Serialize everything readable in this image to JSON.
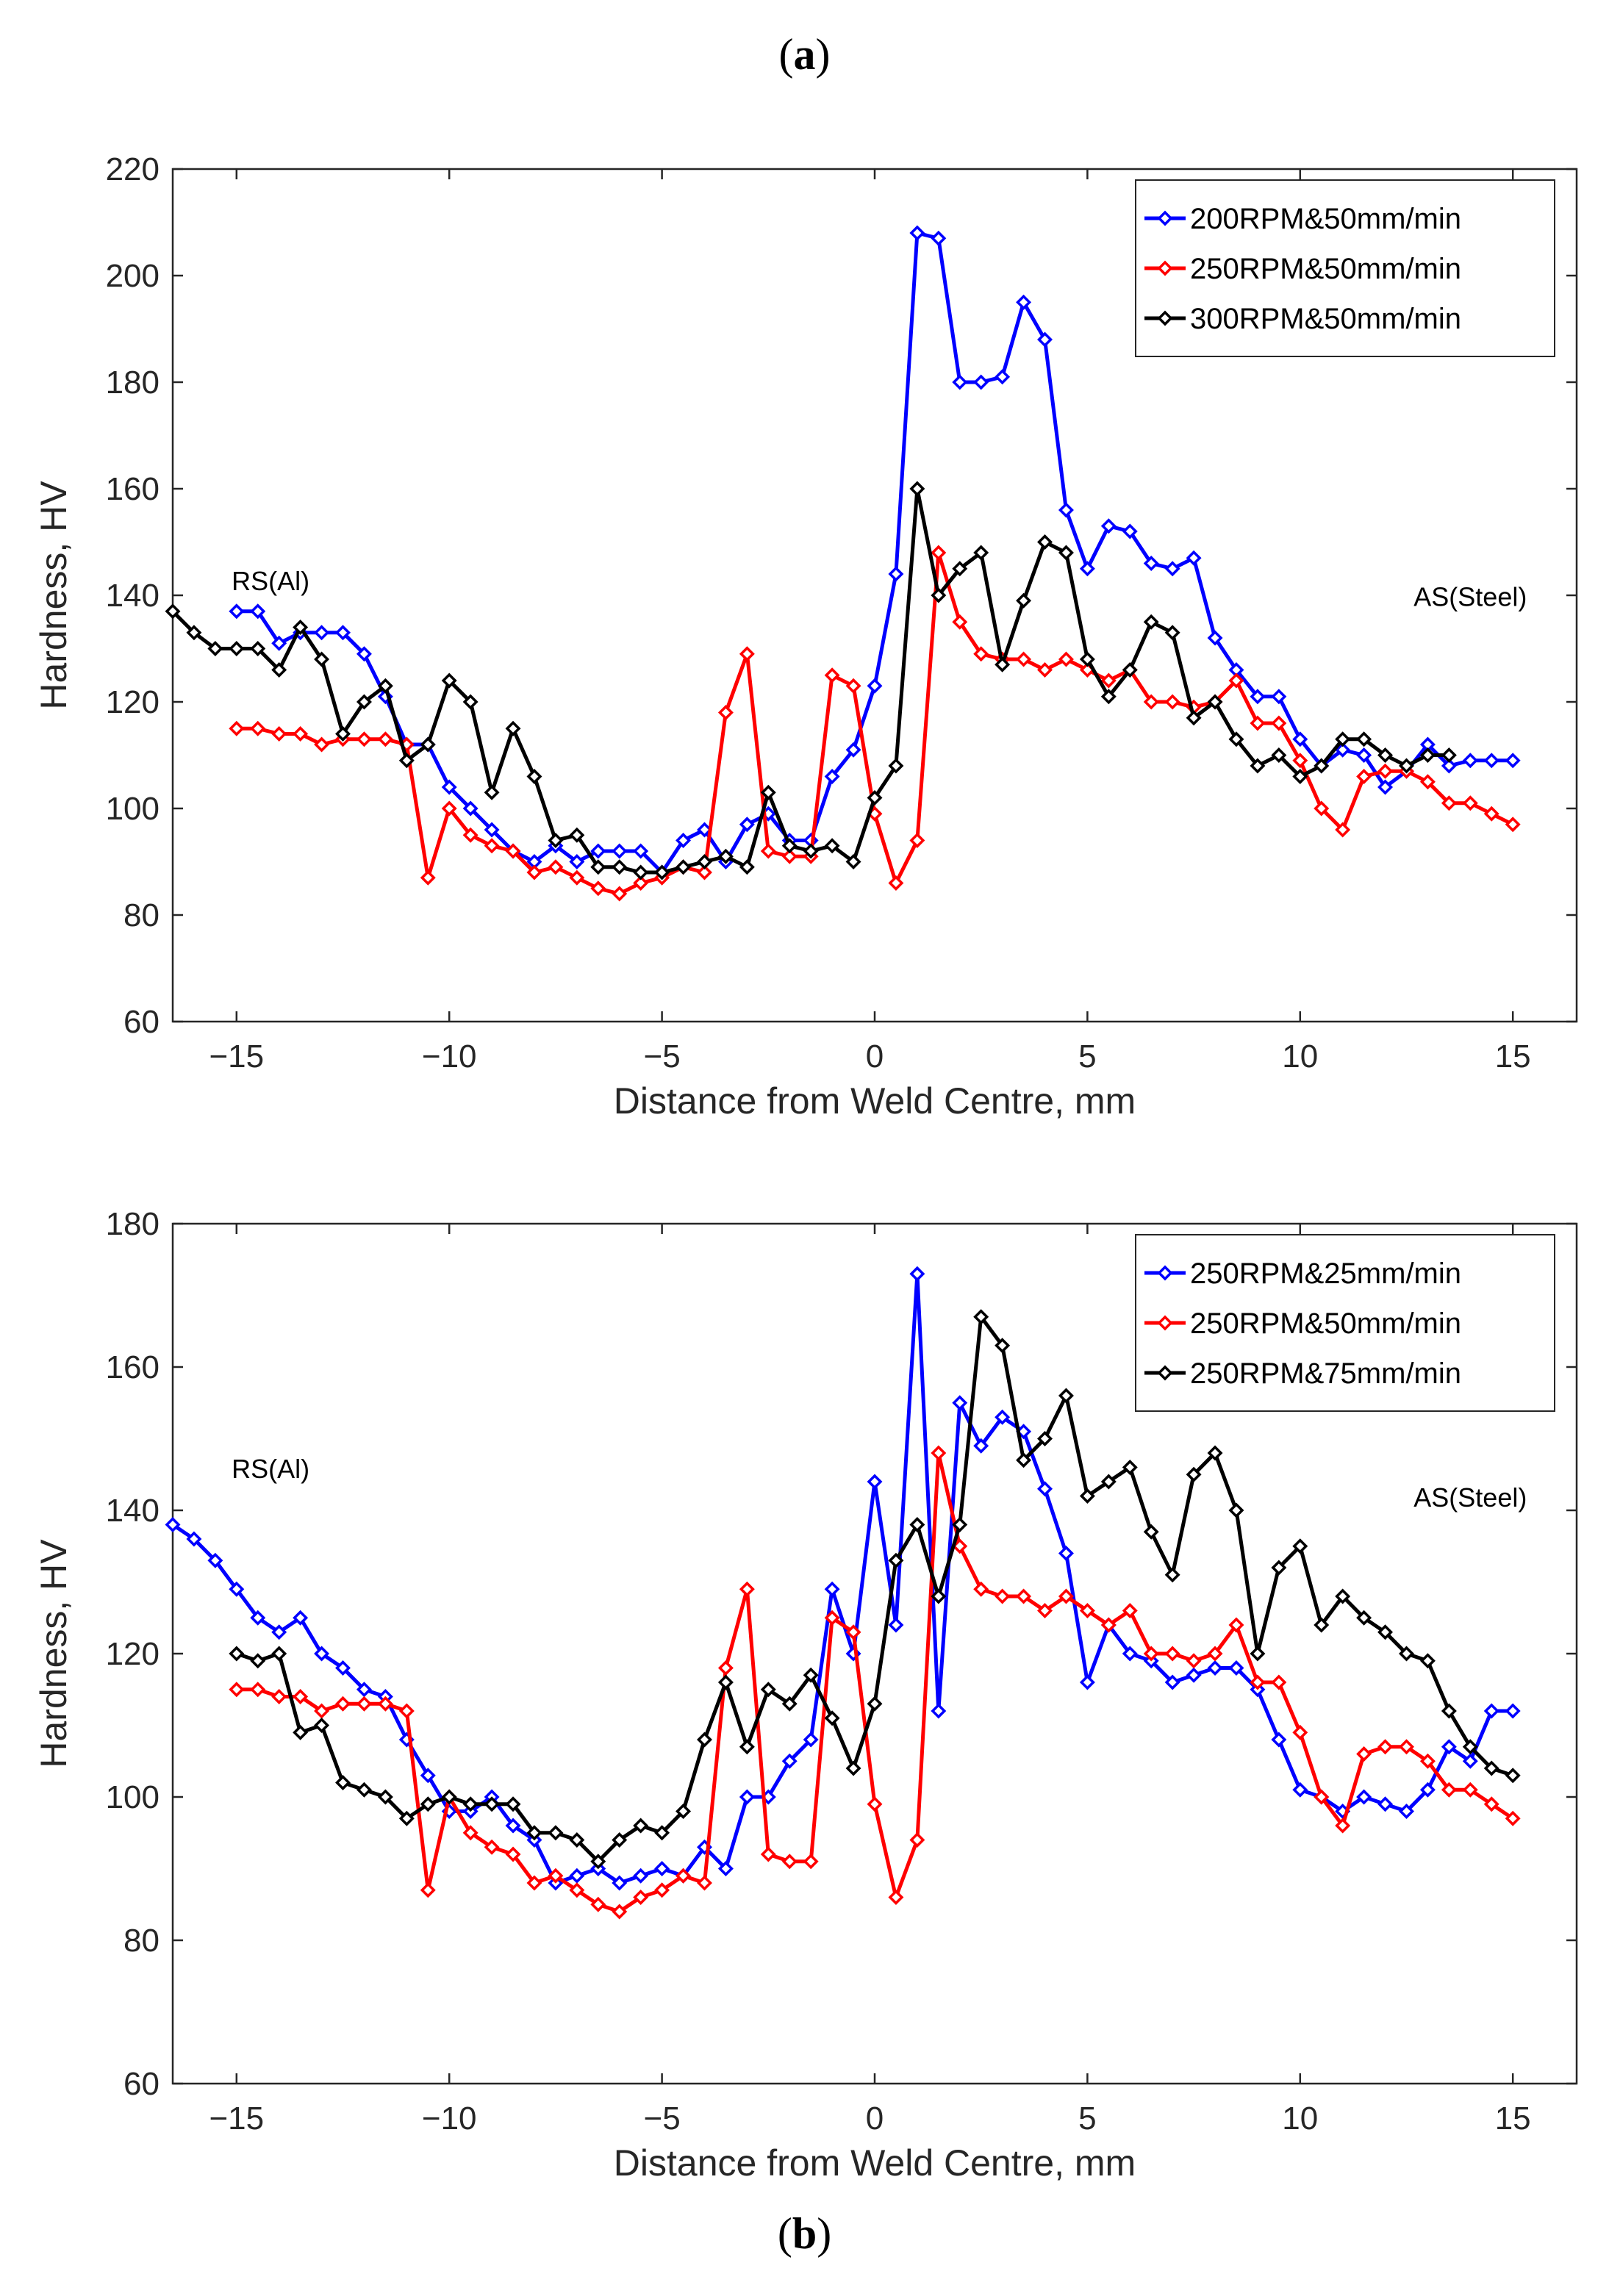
{
  "figure": {
    "label_a_open": "(",
    "label_a_letter": "a",
    "label_a_close": ")",
    "label_b_open": "(",
    "label_b_letter": "b",
    "label_b_close": ")"
  },
  "chart_data": [
    {
      "type": "line",
      "panel": "a",
      "title": "",
      "xlabel": "Distance from Weld Centre, mm",
      "ylabel": "Hardness, HV",
      "xlim": [
        -16.5,
        16.5
      ],
      "ylim": [
        60,
        220
      ],
      "xticks": [
        -15,
        -10,
        -5,
        0,
        5,
        10,
        15
      ],
      "xtick_labels": [
        "−15",
        "−10",
        "−5",
        "0",
        "5",
        "10",
        "15"
      ],
      "yticks": [
        60,
        80,
        100,
        120,
        140,
        160,
        180,
        200,
        220
      ],
      "ytick_labels": [
        "60",
        "80",
        "100",
        "120",
        "140",
        "160",
        "180",
        "200",
        "220"
      ],
      "legend_position": "top-right",
      "annotations": [
        {
          "text": "RS(Al)",
          "x": -14.2,
          "y": 141
        },
        {
          "text": "AS(Steel)",
          "x": 14.0,
          "y": 138
        }
      ],
      "series": [
        {
          "name": "200RPM&50mm/min",
          "color": "#0000ff",
          "x": [
            -15,
            -14.5,
            -14,
            -13.5,
            -13,
            -12.5,
            -12,
            -11.5,
            -11,
            -10.5,
            -10,
            -9.5,
            -9,
            -8.5,
            -8,
            -7.5,
            -7,
            -6.5,
            -6,
            -5.5,
            -5,
            -4.5,
            -4,
            -3.5,
            -3,
            -2.5,
            -2,
            -1.5,
            -1,
            -0.5,
            0,
            0.5,
            1,
            1.5,
            2,
            2.5,
            3,
            3.5,
            4,
            4.5,
            5,
            5.5,
            6,
            6.5,
            7,
            7.5,
            8,
            8.5,
            9,
            9.5,
            10,
            10.5,
            11,
            11.5,
            12,
            12.5,
            13,
            13.5,
            14,
            14.5,
            15
          ],
          "values": [
            137,
            137,
            131,
            133,
            133,
            133,
            129,
            121,
            112,
            112,
            104,
            100,
            96,
            92,
            90,
            93,
            90,
            92,
            92,
            92,
            88,
            94,
            96,
            90,
            97,
            99,
            94,
            94,
            106,
            111,
            123,
            144,
            208,
            207,
            180,
            180,
            181,
            195,
            188,
            156,
            145,
            153,
            152,
            146,
            145,
            147,
            132,
            126,
            121,
            121,
            113,
            108,
            111,
            110,
            104,
            107,
            112,
            108,
            109,
            109,
            109
          ]
        },
        {
          "name": "250RPM&50mm/min",
          "color": "#ff0000",
          "x": [
            -15,
            -14.5,
            -14,
            -13.5,
            -13,
            -12.5,
            -12,
            -11.5,
            -11,
            -10.5,
            -10,
            -9.5,
            -9,
            -8.5,
            -8,
            -7.5,
            -7,
            -6.5,
            -6,
            -5.5,
            -5,
            -4.5,
            -4,
            -3.5,
            -3,
            -2.5,
            -2,
            -1.5,
            -1,
            -0.5,
            0,
            0.5,
            1,
            1.5,
            2,
            2.5,
            3,
            3.5,
            4,
            4.5,
            5,
            5.5,
            6,
            6.5,
            7,
            7.5,
            8,
            8.5,
            9,
            9.5,
            10,
            10.5,
            11,
            11.5,
            12,
            12.5,
            13,
            13.5,
            14,
            14.5,
            15
          ],
          "values": [
            115,
            115,
            114,
            114,
            112,
            113,
            113,
            113,
            112,
            87,
            100,
            95,
            93,
            92,
            88,
            89,
            87,
            85,
            84,
            86,
            87,
            89,
            88,
            118,
            129,
            92,
            91,
            91,
            125,
            123,
            99,
            86,
            94,
            148,
            135,
            129,
            128,
            128,
            126,
            128,
            126,
            124,
            126,
            120,
            120,
            119,
            120,
            124,
            116,
            116,
            109,
            100,
            96,
            106,
            107,
            107,
            105,
            101,
            101,
            99,
            97
          ]
        },
        {
          "name": "300RPM&50mm/min",
          "color": "#000000",
          "x": [
            -16.5,
            -16,
            -15.5,
            -15,
            -14.5,
            -14,
            -13.5,
            -13,
            -12.5,
            -12,
            -11.5,
            -11,
            -10.5,
            -10,
            -9.5,
            -9,
            -8.5,
            -8,
            -7.5,
            -7,
            -6.5,
            -6,
            -5.5,
            -5,
            -4.5,
            -4,
            -3.5,
            -3,
            -2.5,
            -2,
            -1.5,
            -1,
            -0.5,
            0,
            0.5,
            1,
            1.5,
            2,
            2.5,
            3,
            3.5,
            4,
            4.5,
            5,
            5.5,
            6,
            6.5,
            7,
            7.5,
            8,
            8.5,
            9,
            9.5,
            10,
            10.5,
            11,
            11.5,
            12,
            12.5,
            13,
            13.5
          ],
          "values": [
            137,
            133,
            130,
            130,
            130,
            126,
            134,
            128,
            114,
            120,
            123,
            109,
            112,
            124,
            120,
            103,
            115,
            106,
            94,
            95,
            89,
            89,
            88,
            88,
            89,
            90,
            91,
            89,
            103,
            93,
            92,
            93,
            90,
            102,
            108,
            160,
            140,
            145,
            148,
            127,
            139,
            150,
            148,
            128,
            121,
            126,
            135,
            133,
            117,
            120,
            113,
            108,
            110,
            106,
            108,
            113,
            113,
            110,
            108,
            110,
            110
          ]
        }
      ]
    },
    {
      "type": "line",
      "panel": "b",
      "title": "",
      "xlabel": "Distance from Weld Centre, mm",
      "ylabel": "Hardness, HV",
      "xlim": [
        -16.5,
        16.5
      ],
      "ylim": [
        60,
        180
      ],
      "xticks": [
        -15,
        -10,
        -5,
        0,
        5,
        10,
        15
      ],
      "xtick_labels": [
        "−15",
        "−10",
        "−5",
        "0",
        "5",
        "10",
        "15"
      ],
      "yticks": [
        60,
        80,
        100,
        120,
        140,
        160,
        180
      ],
      "ytick_labels": [
        "60",
        "80",
        "100",
        "120",
        "140",
        "160",
        "180"
      ],
      "legend_position": "top-right",
      "annotations": [
        {
          "text": "RS(Al)",
          "x": -14.2,
          "y": 144.5
        },
        {
          "text": "AS(Steel)",
          "x": 14.0,
          "y": 140.5
        }
      ],
      "series": [
        {
          "name": "250RPM&25mm/min",
          "color": "#0000ff",
          "x": [
            -16.5,
            -16,
            -15.5,
            -15,
            -14.5,
            -14,
            -13.5,
            -13,
            -12.5,
            -12,
            -11.5,
            -11,
            -10.5,
            -10,
            -9.5,
            -9,
            -8.5,
            -8,
            -7.5,
            -7,
            -6.5,
            -6,
            -5.5,
            -5,
            -4.5,
            -4,
            -3.5,
            -3,
            -2.5,
            -2,
            -1.5,
            -1,
            -0.5,
            0,
            0.5,
            1,
            1.5,
            2,
            2.5,
            3,
            3.5,
            4,
            4.5,
            5,
            5.5,
            6,
            6.5,
            7,
            7.5,
            8,
            8.5,
            9,
            9.5,
            10,
            10.5,
            11,
            11.5,
            12,
            12.5,
            13,
            13.5,
            14,
            14.5,
            15
          ],
          "values": [
            138,
            136,
            133,
            129,
            125,
            123,
            125,
            120,
            118,
            115,
            114,
            108,
            103,
            98,
            98,
            100,
            96,
            94,
            88,
            89,
            90,
            88,
            89,
            90,
            89,
            93,
            90,
            100,
            100,
            105,
            108,
            129,
            120,
            144,
            124,
            173,
            112,
            155,
            149,
            153,
            151,
            143,
            134,
            116,
            124,
            120,
            119,
            116,
            117,
            118,
            118,
            115,
            108,
            101,
            100,
            98,
            100,
            99,
            98,
            101,
            107,
            105,
            112,
            112
          ]
        },
        {
          "name": "250RPM&50mm/min",
          "color": "#ff0000",
          "x": [
            -15,
            -14.5,
            -14,
            -13.5,
            -13,
            -12.5,
            -12,
            -11.5,
            -11,
            -10.5,
            -10,
            -9.5,
            -9,
            -8.5,
            -8,
            -7.5,
            -7,
            -6.5,
            -6,
            -5.5,
            -5,
            -4.5,
            -4,
            -3.5,
            -3,
            -2.5,
            -2,
            -1.5,
            -1,
            -0.5,
            0,
            0.5,
            1,
            1.5,
            2,
            2.5,
            3,
            3.5,
            4,
            4.5,
            5,
            5.5,
            6,
            6.5,
            7,
            7.5,
            8,
            8.5,
            9,
            9.5,
            10,
            10.5,
            11,
            11.5,
            12,
            12.5,
            13,
            13.5,
            14,
            14.5,
            15
          ],
          "values": [
            115,
            115,
            114,
            114,
            112,
            113,
            113,
            113,
            112,
            87,
            100,
            95,
            93,
            92,
            88,
            89,
            87,
            85,
            84,
            86,
            87,
            89,
            88,
            118,
            129,
            92,
            91,
            91,
            125,
            123,
            99,
            86,
            94,
            148,
            135,
            129,
            128,
            128,
            126,
            128,
            126,
            124,
            126,
            120,
            120,
            119,
            120,
            124,
            116,
            116,
            109,
            100,
            96,
            106,
            107,
            107,
            105,
            101,
            101,
            99,
            97
          ]
        },
        {
          "name": "250RPM&75mm/min",
          "color": "#000000",
          "x": [
            -15,
            -14.5,
            -14,
            -13.5,
            -13,
            -12.5,
            -12,
            -11.5,
            -11,
            -10.5,
            -10,
            -9.5,
            -9,
            -8.5,
            -8,
            -7.5,
            -7,
            -6.5,
            -6,
            -5.5,
            -5,
            -4.5,
            -4,
            -3.5,
            -3,
            -2.5,
            -2,
            -1.5,
            -1,
            -0.5,
            0,
            0.5,
            1,
            1.5,
            2,
            2.5,
            3,
            3.5,
            4,
            4.5,
            5,
            5.5,
            6,
            6.5,
            7,
            7.5,
            8,
            8.5,
            9,
            9.5,
            10,
            10.5,
            11,
            11.5,
            12,
            12.5,
            13,
            13.5,
            14,
            14.5,
            15
          ],
          "values": [
            120,
            119,
            120,
            109,
            110,
            102,
            101,
            100,
            97,
            99,
            100,
            99,
            99,
            99,
            95,
            95,
            94,
            91,
            94,
            96,
            95,
            98,
            108,
            116,
            107,
            115,
            113,
            117,
            111,
            104,
            113,
            133,
            138,
            128,
            138,
            167,
            163,
            147,
            150,
            156,
            142,
            144,
            146,
            137,
            131,
            145,
            148,
            140,
            120,
            132,
            135,
            124,
            128,
            125,
            123,
            120,
            119,
            112,
            107,
            104,
            103
          ]
        }
      ]
    }
  ]
}
